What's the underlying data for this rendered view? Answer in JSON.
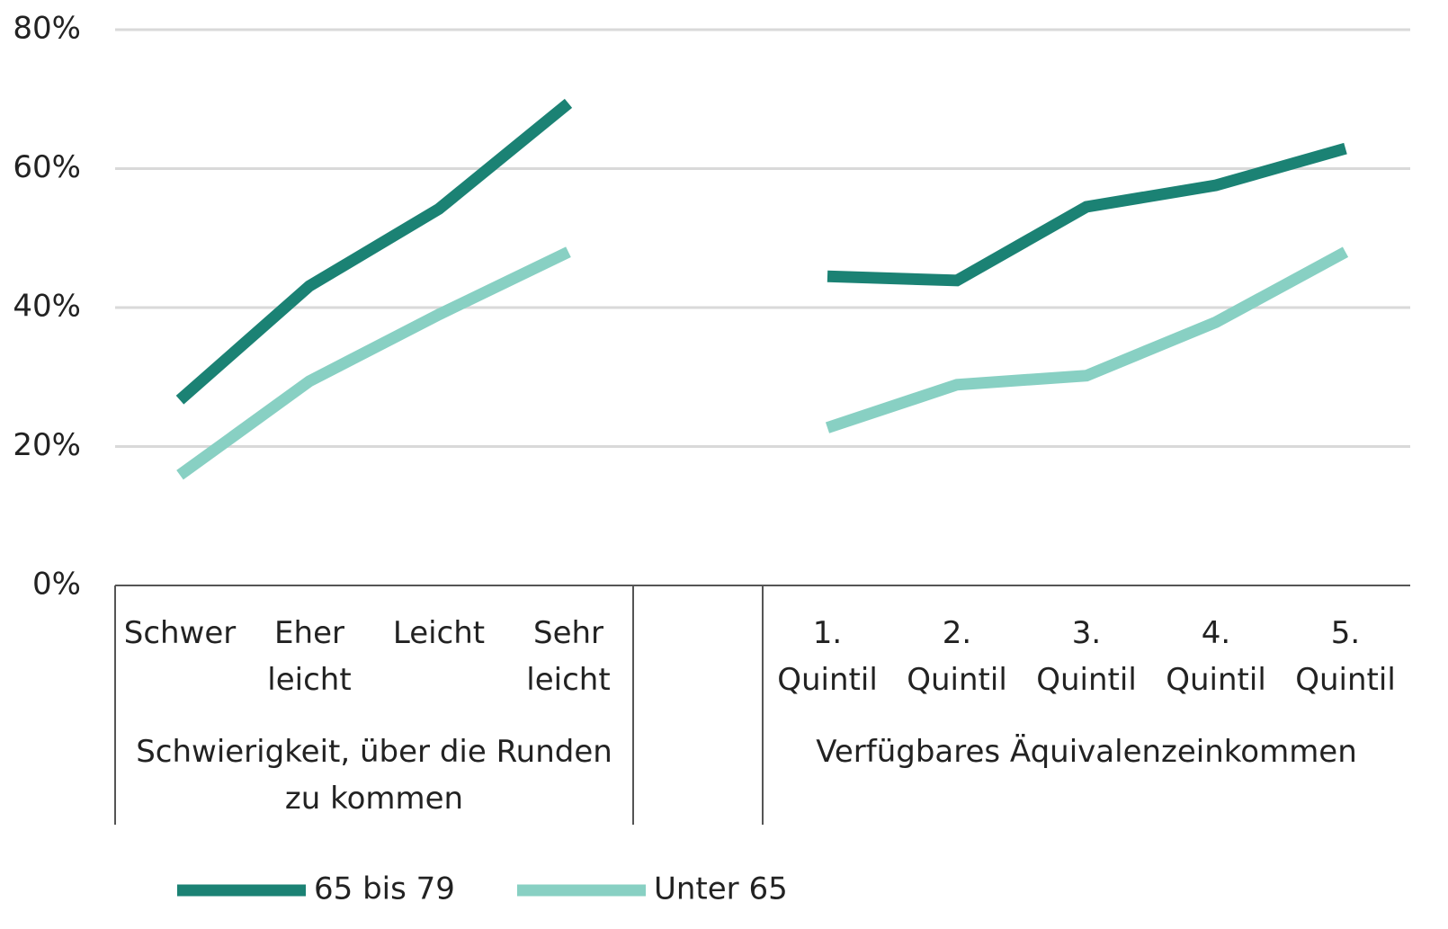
{
  "chart_data": {
    "type": "line",
    "categories": [
      "Schwer",
      "Eher leicht",
      "Leicht",
      "Sehr leicht",
      null,
      "1. Quintil",
      "2. Quintil",
      "3. Quintil",
      "4. Quintil",
      "5. Quintil"
    ],
    "group_labels": [
      "Schwierigkeit, über die Runden zu kommen",
      "Verfügbares Äquivalenzeinkommen"
    ],
    "series": [
      {
        "name": "65 bis 79",
        "color": "#1b8274",
        "values": [
          26.7,
          43.1,
          54.2,
          69.4,
          null,
          44.5,
          43.9,
          54.5,
          57.6,
          62.9
        ]
      },
      {
        "name": "Unter 65",
        "color": "#88d0c3",
        "values": [
          15.9,
          29.4,
          39,
          48,
          null,
          22.7,
          28.9,
          30.2,
          37.9,
          48
        ]
      }
    ],
    "ylim": [
      0,
      80
    ],
    "yticks": [
      {
        "value": 0,
        "label": "0%"
      },
      {
        "value": 20,
        "label": "20%"
      },
      {
        "value": 40,
        "label": "40%"
      },
      {
        "value": 60,
        "label": "60%"
      },
      {
        "value": 80,
        "label": "80%"
      }
    ],
    "grid": true,
    "legend": "bottom"
  }
}
